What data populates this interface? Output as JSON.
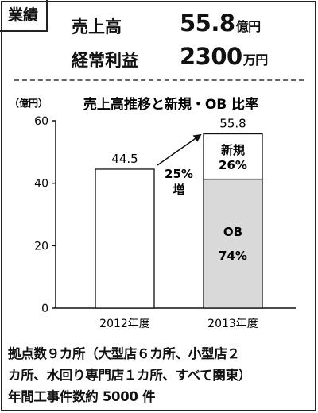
{
  "tag": "業績",
  "kpis": [
    {
      "label": "売上高",
      "value": "55.8",
      "unit": "億円"
    },
    {
      "label": "経常利益",
      "value": "2300",
      "unit": "万円"
    }
  ],
  "chart_data": {
    "type": "bar",
    "title": "売上高推移と新規・OB 比率",
    "ylabel": "（億円）",
    "ylim": [
      0,
      60
    ],
    "yticks": [
      0,
      20,
      40,
      60
    ],
    "categories": [
      "2012年度",
      "2013年度"
    ],
    "values": [
      44.5,
      55.8
    ],
    "value_labels": [
      "44.5",
      "55.8"
    ],
    "segments_2013": [
      {
        "name": "OB",
        "share_label": "74%",
        "share": 74,
        "color": "#d9d9d9"
      },
      {
        "name": "新規",
        "share_label": "26%",
        "share": 26,
        "color": "#ffffff"
      }
    ],
    "growth_annotation": {
      "line1": "25%",
      "line2": "増"
    },
    "grid": false
  },
  "footer": [
    "拠点数９カ所（大型店６カ所、小型店２",
    "カ所、水回り専門店１カ所、すべて関東）",
    "年間工事件数約 5000 件"
  ]
}
